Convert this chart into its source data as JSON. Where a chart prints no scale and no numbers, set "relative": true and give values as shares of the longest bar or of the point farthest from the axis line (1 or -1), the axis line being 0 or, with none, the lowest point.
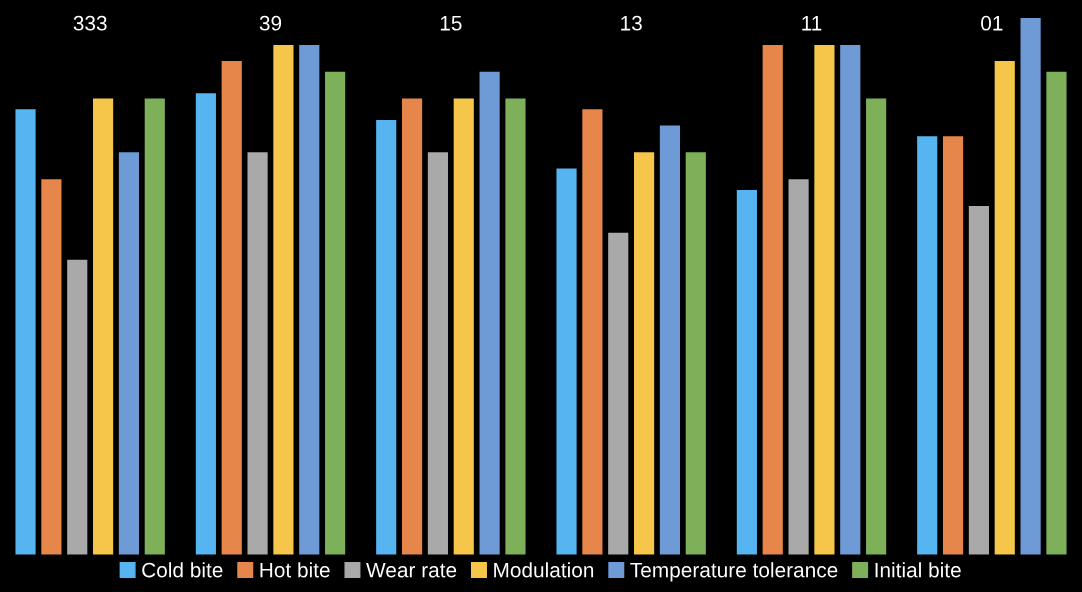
{
  "chart_data": {
    "type": "bar",
    "relative": true,
    "categories": [
      "333",
      "39",
      "15",
      "13",
      "11",
      "01"
    ],
    "series": [
      {
        "name": "Cold bite",
        "color": "#56b4f0",
        "values": [
          0.83,
          0.86,
          0.81,
          0.72,
          0.68,
          0.78
        ]
      },
      {
        "name": "Hot bite",
        "color": "#e6864a",
        "values": [
          0.7,
          0.92,
          0.85,
          0.83,
          0.95,
          0.78
        ]
      },
      {
        "name": "Wear rate",
        "color": "#a9a9a9",
        "values": [
          0.55,
          0.75,
          0.75,
          0.6,
          0.7,
          0.65
        ]
      },
      {
        "name": "Modulation",
        "color": "#f5c64a",
        "values": [
          0.85,
          0.95,
          0.85,
          0.75,
          0.95,
          0.92
        ]
      },
      {
        "name": "Temperature tolerance",
        "color": "#6e9bd6",
        "values": [
          0.75,
          0.95,
          0.9,
          0.8,
          0.95,
          1.0
        ]
      },
      {
        "name": "Initial bite",
        "color": "#7eb05a",
        "values": [
          0.85,
          0.9,
          0.85,
          0.75,
          0.85,
          0.9
        ]
      }
    ],
    "legend": "bottom",
    "grid": false
  }
}
